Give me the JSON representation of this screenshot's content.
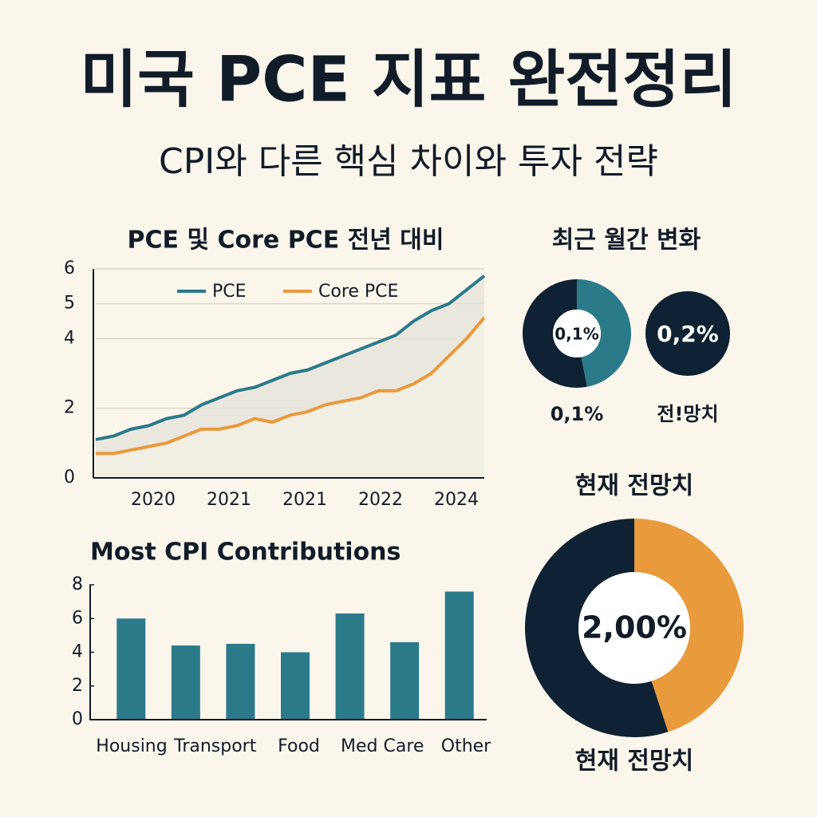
{
  "header": {
    "title": "미국 PCE 지표 완전정리",
    "subtitle": "CPI와 다른 핵심 차이와 투자 전략"
  },
  "monthly_section": {
    "title": "최근 월간 변화"
  },
  "chart_data": [
    {
      "type": "line",
      "title": "PCE 및 Core PCE 전년 대비",
      "xtick_labels": [
        "2020",
        "2021",
        "2021",
        "2022",
        "2024"
      ],
      "series": [
        {
          "name": "PCE",
          "color": "#2b7a8a",
          "values": [
            1.1,
            1.2,
            1.4,
            1.5,
            1.7,
            1.8,
            2.1,
            2.3,
            2.5,
            2.6,
            2.8,
            3.0,
            3.1,
            3.3,
            3.5,
            3.7,
            3.9,
            4.1,
            4.5,
            4.8,
            5.0,
            5.4,
            5.8
          ]
        },
        {
          "name": "Core PCE",
          "color": "#e89a3c",
          "values": [
            0.7,
            0.7,
            0.8,
            0.9,
            1.0,
            1.2,
            1.4,
            1.4,
            1.5,
            1.7,
            1.6,
            1.8,
            1.9,
            2.1,
            2.2,
            2.3,
            2.5,
            2.5,
            2.7,
            3.0,
            3.5,
            4.0,
            4.6
          ]
        }
      ],
      "ylim": [
        0,
        6
      ],
      "yticks": [
        0,
        2,
        4,
        5,
        6
      ],
      "grid": true,
      "fill_between": true
    },
    {
      "type": "bar",
      "title": "Most CPI Contributions",
      "categories": [
        "Housing",
        "Transport",
        null,
        "Food",
        "Med Care",
        null,
        "Other"
      ],
      "values": [
        6.0,
        4.4,
        4.5,
        4.0,
        6.3,
        4.6,
        7.6
      ],
      "color": "#2b7a8a",
      "ylim": [
        0,
        8
      ],
      "yticks": [
        0,
        2,
        4,
        6,
        8
      ]
    },
    {
      "type": "donut",
      "center_label": "0,1%",
      "label": "0,1%",
      "values": [
        47,
        53
      ],
      "colors": [
        "#2b7a8a",
        "#0f2233"
      ]
    },
    {
      "type": "pie",
      "center_label": "0,2%",
      "label": "전!망치",
      "values": [
        100
      ],
      "colors": [
        "#0f2233"
      ]
    },
    {
      "type": "donut",
      "title": "현재 전망치",
      "center_label": "2,00%",
      "label": "현재 전망치",
      "values": [
        45,
        55
      ],
      "colors": [
        "#e89a3c",
        "#0f2233"
      ]
    }
  ]
}
